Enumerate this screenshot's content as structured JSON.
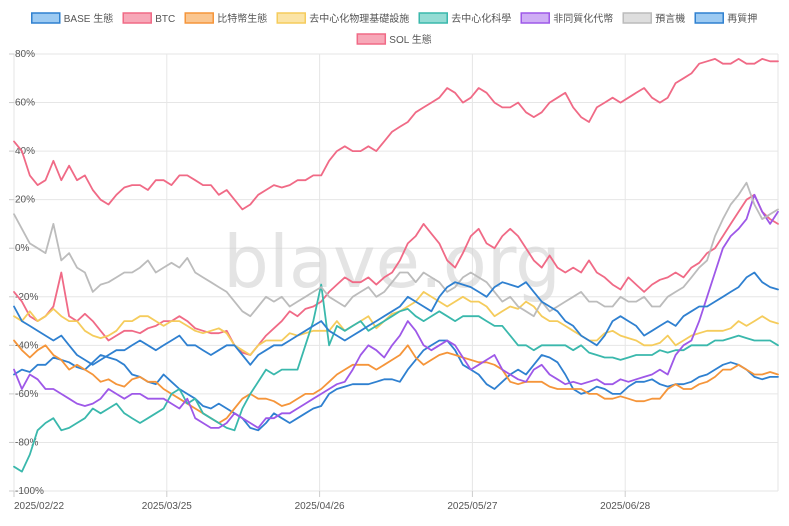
{
  "watermark": "blave.org",
  "chart_data": {
    "type": "line",
    "ylim": [
      -100,
      80
    ],
    "yticks": [
      80,
      60,
      40,
      20,
      0,
      -20,
      -40,
      -60,
      -80,
      -100
    ],
    "ytick_labels": [
      "80%",
      "60%",
      "40%",
      "20%",
      "0%",
      "-20%",
      "-40%",
      "-60%",
      "-80%",
      "-100%"
    ],
    "xticks": [
      "2025/02/22",
      "2025/03/25",
      "2025/04/26",
      "2025/05/27",
      "2025/06/28"
    ],
    "grid": true,
    "legend_position": "top",
    "series": [
      {
        "name": "BASE 生態",
        "color": "#2f80d0",
        "fill": "#9ccaf2",
        "values": [
          -52,
          -50,
          -51,
          -48,
          -48,
          -45,
          -46,
          -47,
          -49,
          -50,
          -47,
          -44,
          -45,
          -46,
          -48,
          -52,
          -53,
          -55,
          -56,
          -52,
          -55,
          -58,
          -60,
          -62,
          -65,
          -66,
          -64,
          -66,
          -68,
          -70,
          -74,
          -75,
          -72,
          -68,
          -70,
          -72,
          -70,
          -68,
          -66,
          -65,
          -60,
          -58,
          -57,
          -56,
          -56,
          -56,
          -55,
          -54,
          -54,
          -55,
          -50,
          -46,
          -42,
          -40,
          -38,
          -38,
          -42,
          -48,
          -50,
          -52,
          -56,
          -58,
          -55,
          -52,
          -50,
          -52,
          -48,
          -44,
          -45,
          -47,
          -52,
          -58,
          -60,
          -59,
          -57,
          -58,
          -60,
          -60,
          -57,
          -55,
          -55,
          -54,
          -56,
          -57,
          -56,
          -56,
          -55,
          -53,
          -52,
          -50,
          -48,
          -47,
          -48,
          -50,
          -53,
          -54,
          -53,
          -53
        ]
      },
      {
        "name": "BTC",
        "color": "#f06a86",
        "fill": "#f7a8b8",
        "values": [
          -18,
          -22,
          -28,
          -30,
          -28,
          -24,
          -10,
          -28,
          -30,
          -27,
          -30,
          -34,
          -38,
          -36,
          -34,
          -34,
          -35,
          -33,
          -32,
          -30,
          -30,
          -28,
          -30,
          -33,
          -34,
          -35,
          -35,
          -34,
          -40,
          -43,
          -44,
          -40,
          -36,
          -33,
          -30,
          -26,
          -28,
          -25,
          -24,
          -22,
          -18,
          -15,
          -12,
          -14,
          -14,
          -12,
          -15,
          -12,
          -10,
          -5,
          2,
          5,
          10,
          6,
          2,
          -5,
          -8,
          -2,
          5,
          8,
          2,
          0,
          5,
          8,
          5,
          0,
          -5,
          -8,
          -3,
          -8,
          -10,
          -8,
          -10,
          -5,
          -10,
          -12,
          -15,
          -17,
          -12,
          -15,
          -18,
          -15,
          -13,
          -12,
          -10,
          -12,
          -8,
          -6,
          -2,
          0,
          5,
          10,
          15,
          20,
          22,
          15,
          12,
          10
        ]
      },
      {
        "name": "比特幣生態",
        "color": "#f5953a",
        "fill": "#fac690",
        "values": [
          -38,
          -42,
          -45,
          -42,
          -40,
          -44,
          -46,
          -50,
          -48,
          -50,
          -52,
          -55,
          -54,
          -56,
          -57,
          -54,
          -53,
          -55,
          -55,
          -58,
          -60,
          -62,
          -64,
          -66,
          -68,
          -70,
          -72,
          -70,
          -66,
          -62,
          -60,
          -62,
          -62,
          -63,
          -65,
          -64,
          -62,
          -60,
          -60,
          -58,
          -55,
          -52,
          -50,
          -48,
          -48,
          -48,
          -50,
          -48,
          -46,
          -44,
          -40,
          -45,
          -48,
          -46,
          -44,
          -43,
          -44,
          -45,
          -46,
          -47,
          -47,
          -48,
          -50,
          -55,
          -56,
          -55,
          -55,
          -55,
          -57,
          -58,
          -58,
          -58,
          -58,
          -60,
          -60,
          -62,
          -62,
          -61,
          -62,
          -63,
          -63,
          -62,
          -62,
          -58,
          -56,
          -58,
          -58,
          -56,
          -55,
          -53,
          -50,
          -50,
          -48,
          -50,
          -52,
          -52,
          -51,
          -52
        ]
      },
      {
        "name": "去中心化物理基礎設施",
        "color": "#f5cc5c",
        "fill": "#fbe4a6",
        "values": [
          -28,
          -30,
          -26,
          -30,
          -28,
          -25,
          -28,
          -30,
          -30,
          -34,
          -36,
          -37,
          -36,
          -34,
          -30,
          -30,
          -28,
          -28,
          -30,
          -32,
          -30,
          -30,
          -32,
          -34,
          -35,
          -34,
          -33,
          -35,
          -40,
          -42,
          -44,
          -40,
          -38,
          -38,
          -38,
          -35,
          -36,
          -35,
          -34,
          -34,
          -34,
          -30,
          -34,
          -32,
          -30,
          -28,
          -33,
          -30,
          -27,
          -26,
          -24,
          -22,
          -18,
          -20,
          -22,
          -24,
          -22,
          -20,
          -22,
          -22,
          -24,
          -28,
          -26,
          -24,
          -25,
          -22,
          -24,
          -28,
          -30,
          -30,
          -32,
          -34,
          -36,
          -38,
          -38,
          -35,
          -34,
          -36,
          -37,
          -38,
          -40,
          -40,
          -39,
          -36,
          -40,
          -38,
          -36,
          -35,
          -34,
          -34,
          -34,
          -33,
          -30,
          -32,
          -30,
          -28,
          -30,
          -31
        ]
      },
      {
        "name": "去中心化科學",
        "color": "#3ab8ac",
        "fill": "#94dcd4",
        "values": [
          -90,
          -92,
          -85,
          -75,
          -72,
          -70,
          -75,
          -74,
          -72,
          -70,
          -66,
          -68,
          -66,
          -64,
          -68,
          -70,
          -72,
          -70,
          -68,
          -66,
          -60,
          -58,
          -64,
          -62,
          -68,
          -70,
          -72,
          -74,
          -75,
          -66,
          -60,
          -55,
          -50,
          -52,
          -50,
          -50,
          -50,
          -40,
          -30,
          -15,
          -40,
          -32,
          -34,
          -32,
          -30,
          -34,
          -32,
          -30,
          -28,
          -26,
          -25,
          -28,
          -30,
          -28,
          -26,
          -28,
          -30,
          -28,
          -28,
          -28,
          -30,
          -32,
          -32,
          -36,
          -40,
          -40,
          -42,
          -40,
          -40,
          -40,
          -40,
          -42,
          -40,
          -43,
          -44,
          -45,
          -45,
          -46,
          -45,
          -44,
          -44,
          -44,
          -42,
          -43,
          -42,
          -42,
          -40,
          -40,
          -40,
          -38,
          -38,
          -37,
          -36,
          -37,
          -38,
          -38,
          -38,
          -40
        ]
      },
      {
        "name": "非同質化代幣",
        "color": "#9e58e8",
        "fill": "#cfaef5",
        "values": [
          -50,
          -58,
          -52,
          -54,
          -58,
          -58,
          -60,
          -62,
          -64,
          -65,
          -64,
          -62,
          -58,
          -60,
          -62,
          -60,
          -60,
          -62,
          -62,
          -62,
          -64,
          -66,
          -62,
          -70,
          -72,
          -74,
          -74,
          -72,
          -68,
          -70,
          -72,
          -74,
          -70,
          -70,
          -68,
          -68,
          -66,
          -64,
          -62,
          -60,
          -58,
          -56,
          -55,
          -50,
          -44,
          -40,
          -42,
          -45,
          -40,
          -36,
          -30,
          -34,
          -40,
          -42,
          -40,
          -38,
          -40,
          -45,
          -50,
          -48,
          -46,
          -44,
          -50,
          -52,
          -54,
          -55,
          -50,
          -48,
          -52,
          -54,
          -56,
          -55,
          -56,
          -55,
          -54,
          -56,
          -56,
          -54,
          -55,
          -54,
          -53,
          -52,
          -50,
          -52,
          -44,
          -40,
          -38,
          -30,
          -20,
          -10,
          0,
          5,
          8,
          12,
          22,
          15,
          10,
          15
        ]
      },
      {
        "name": "預言機",
        "color": "#bcbcbc",
        "fill": "#dedede",
        "values": [
          14,
          8,
          2,
          0,
          -2,
          10,
          -5,
          -2,
          -8,
          -10,
          -18,
          -15,
          -14,
          -12,
          -10,
          -10,
          -8,
          -5,
          -10,
          -8,
          -6,
          -8,
          -4,
          -10,
          -12,
          -14,
          -16,
          -18,
          -22,
          -26,
          -28,
          -24,
          -20,
          -22,
          -20,
          -24,
          -22,
          -20,
          -18,
          -16,
          -20,
          -22,
          -24,
          -20,
          -18,
          -16,
          -20,
          -18,
          -14,
          -10,
          -10,
          -14,
          -10,
          -12,
          -14,
          -18,
          -16,
          -12,
          -10,
          -12,
          -14,
          -18,
          -22,
          -20,
          -24,
          -26,
          -28,
          -22,
          -26,
          -24,
          -22,
          -20,
          -18,
          -22,
          -22,
          -24,
          -24,
          -20,
          -22,
          -22,
          -20,
          -24,
          -24,
          -20,
          -18,
          -16,
          -12,
          -8,
          -5,
          5,
          12,
          18,
          22,
          27,
          18,
          12,
          14,
          16
        ]
      },
      {
        "name": "再質押",
        "color": "#2f80d0",
        "fill": "#9ccaf2",
        "values": [
          -24,
          -30,
          -32,
          -34,
          -36,
          -38,
          -36,
          -40,
          -44,
          -46,
          -48,
          -46,
          -44,
          -42,
          -42,
          -40,
          -38,
          -40,
          -42,
          -40,
          -38,
          -36,
          -40,
          -40,
          -42,
          -44,
          -42,
          -40,
          -40,
          -44,
          -48,
          -44,
          -42,
          -40,
          -40,
          -38,
          -36,
          -34,
          -32,
          -30,
          -34,
          -36,
          -38,
          -36,
          -34,
          -32,
          -30,
          -28,
          -26,
          -24,
          -20,
          -22,
          -24,
          -26,
          -20,
          -16,
          -14,
          -15,
          -16,
          -18,
          -20,
          -16,
          -14,
          -15,
          -16,
          -14,
          -18,
          -22,
          -24,
          -26,
          -30,
          -32,
          -36,
          -38,
          -40,
          -36,
          -30,
          -28,
          -30,
          -32,
          -36,
          -34,
          -32,
          -30,
          -32,
          -28,
          -26,
          -24,
          -24,
          -22,
          -20,
          -18,
          -16,
          -12,
          -10,
          -14,
          -16,
          -17
        ]
      },
      {
        "name": "SOL 生態",
        "color": "#f06a86",
        "fill": "#f7a8b8",
        "values": [
          44,
          40,
          30,
          26,
          28,
          36,
          28,
          34,
          28,
          30,
          24,
          20,
          18,
          22,
          25,
          26,
          26,
          24,
          28,
          28,
          26,
          30,
          30,
          28,
          26,
          26,
          22,
          24,
          20,
          16,
          18,
          22,
          24,
          26,
          25,
          26,
          28,
          28,
          30,
          30,
          36,
          40,
          42,
          40,
          40,
          42,
          40,
          44,
          48,
          50,
          52,
          56,
          58,
          60,
          62,
          66,
          64,
          60,
          62,
          66,
          64,
          60,
          58,
          58,
          60,
          56,
          54,
          56,
          60,
          62,
          64,
          58,
          54,
          52,
          58,
          60,
          62,
          60,
          62,
          64,
          66,
          62,
          60,
          62,
          68,
          70,
          72,
          76,
          77,
          78,
          76,
          76,
          78,
          76,
          76,
          78,
          77,
          77
        ]
      }
    ]
  }
}
